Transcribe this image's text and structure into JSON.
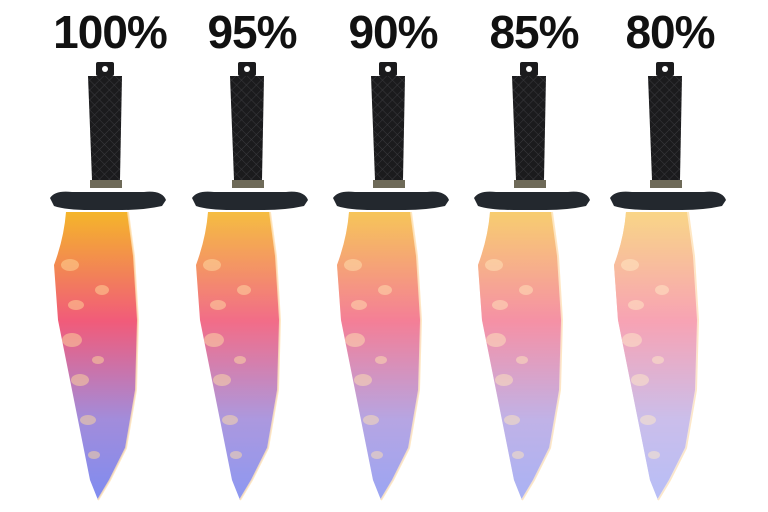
{
  "items": [
    {
      "label": "100%",
      "wear": 0.0,
      "blade_icon": "knife-icon"
    },
    {
      "label": "95%",
      "wear": 0.05,
      "blade_icon": "knife-icon"
    },
    {
      "label": "90%",
      "wear": 0.1,
      "blade_icon": "knife-icon"
    },
    {
      "label": "85%",
      "wear": 0.15,
      "blade_icon": "knife-icon"
    },
    {
      "label": "80%",
      "wear": 0.2,
      "blade_icon": "knife-icon"
    }
  ],
  "colors": {
    "handle": "#1b1b1d",
    "guard": "#23282e",
    "blade_top": "#f4b52a",
    "blade_mid": "#f15b7a",
    "blade_low": "#a28cdb",
    "blade_tip": "#7f8cf0",
    "label": "#111111"
  }
}
